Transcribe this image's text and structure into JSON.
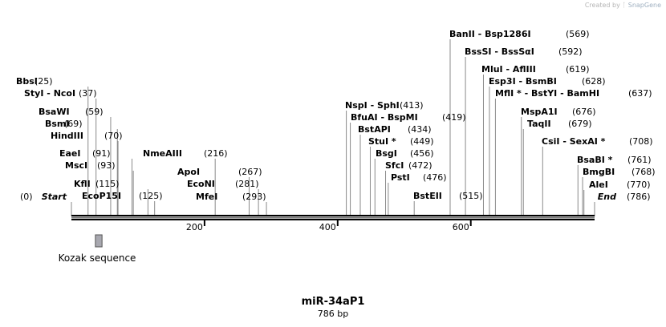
{
  "credit": {
    "prefix": "Created by",
    "brand": "SnapGene"
  },
  "map": {
    "title": "miR-34aP1",
    "length_label": "786 bp",
    "total_bp": 786,
    "start_label": "Start",
    "start_pos": "(0)",
    "end_label": "End",
    "end_pos": "(786)",
    "ticks": [
      {
        "label": "200",
        "bp": 200
      },
      {
        "label": "400",
        "bp": 400
      },
      {
        "label": "600",
        "bp": 600
      }
    ],
    "feature": {
      "label": "Kozak sequence",
      "start_bp": 36,
      "end_bp": 46,
      "color": "#a8a8b0"
    }
  },
  "sites": [
    {
      "bp": 25,
      "names": [
        "BbsI"
      ],
      "pos": "(25)"
    },
    {
      "bp": 37,
      "names": [
        "StyI",
        "NcoI"
      ],
      "pos": "(37)"
    },
    {
      "bp": 59,
      "names": [
        "BsaWI"
      ],
      "pos": "(59)"
    },
    {
      "bp": 69,
      "names": [
        "BsmI"
      ],
      "pos": "(69)"
    },
    {
      "bp": 70,
      "names": [
        "HindIII"
      ],
      "pos": "(70)"
    },
    {
      "bp": 91,
      "names": [
        "EaeI"
      ],
      "pos": "(91)"
    },
    {
      "bp": 93,
      "names": [
        "MscI"
      ],
      "pos": "(93)"
    },
    {
      "bp": 115,
      "names": [
        "KflI"
      ],
      "pos": "(115)"
    },
    {
      "bp": 125,
      "names": [
        "EcoP15I"
      ],
      "pos": "(125)"
    },
    {
      "bp": 216,
      "names": [
        "NmeAIII"
      ],
      "pos": "(216)"
    },
    {
      "bp": 267,
      "names": [
        "ApoI"
      ],
      "pos": "(267)"
    },
    {
      "bp": 281,
      "names": [
        "EcoNI"
      ],
      "pos": "(281)"
    },
    {
      "bp": 293,
      "names": [
        "MfeI"
      ],
      "pos": "(293)"
    },
    {
      "bp": 413,
      "names": [
        "NspI",
        "SphI"
      ],
      "pos": "(413)"
    },
    {
      "bp": 419,
      "names": [
        "BfuAI",
        "BspMI"
      ],
      "pos": "(419)"
    },
    {
      "bp": 434,
      "names": [
        "BstAPI"
      ],
      "pos": "(434)"
    },
    {
      "bp": 449,
      "names": [
        "StuI *"
      ],
      "pos": "(449)"
    },
    {
      "bp": 456,
      "names": [
        "BsgI"
      ],
      "pos": "(456)"
    },
    {
      "bp": 472,
      "names": [
        "SfcI"
      ],
      "pos": "(472)"
    },
    {
      "bp": 476,
      "names": [
        "PstI"
      ],
      "pos": "(476)"
    },
    {
      "bp": 515,
      "names": [
        "BstEII"
      ],
      "pos": "(515)"
    },
    {
      "bp": 569,
      "names": [
        "BanII",
        "Bsp1286I"
      ],
      "pos": "(569)"
    },
    {
      "bp": 592,
      "names": [
        "BssSI",
        "BssSαI"
      ],
      "pos": "(592)"
    },
    {
      "bp": 619,
      "names": [
        "MluI",
        "AflIII"
      ],
      "pos": "(619)"
    },
    {
      "bp": 628,
      "names": [
        "Esp3I",
        "BsmBI"
      ],
      "pos": "(628)"
    },
    {
      "bp": 637,
      "names": [
        "MflI *",
        "BstYI",
        "BamHI"
      ],
      "pos": "(637)"
    },
    {
      "bp": 676,
      "names": [
        "MspA1I"
      ],
      "pos": "(676)"
    },
    {
      "bp": 679,
      "names": [
        "TaqII"
      ],
      "pos": "(679)"
    },
    {
      "bp": 708,
      "names": [
        "CsiI",
        "SexAI *"
      ],
      "pos": "(708)"
    },
    {
      "bp": 761,
      "names": [
        "BsaBI *"
      ],
      "pos": "(761)"
    },
    {
      "bp": 768,
      "names": [
        "BmgBI"
      ],
      "pos": "(768)"
    },
    {
      "bp": 770,
      "names": [
        "AleI"
      ],
      "pos": "(770)"
    }
  ]
}
